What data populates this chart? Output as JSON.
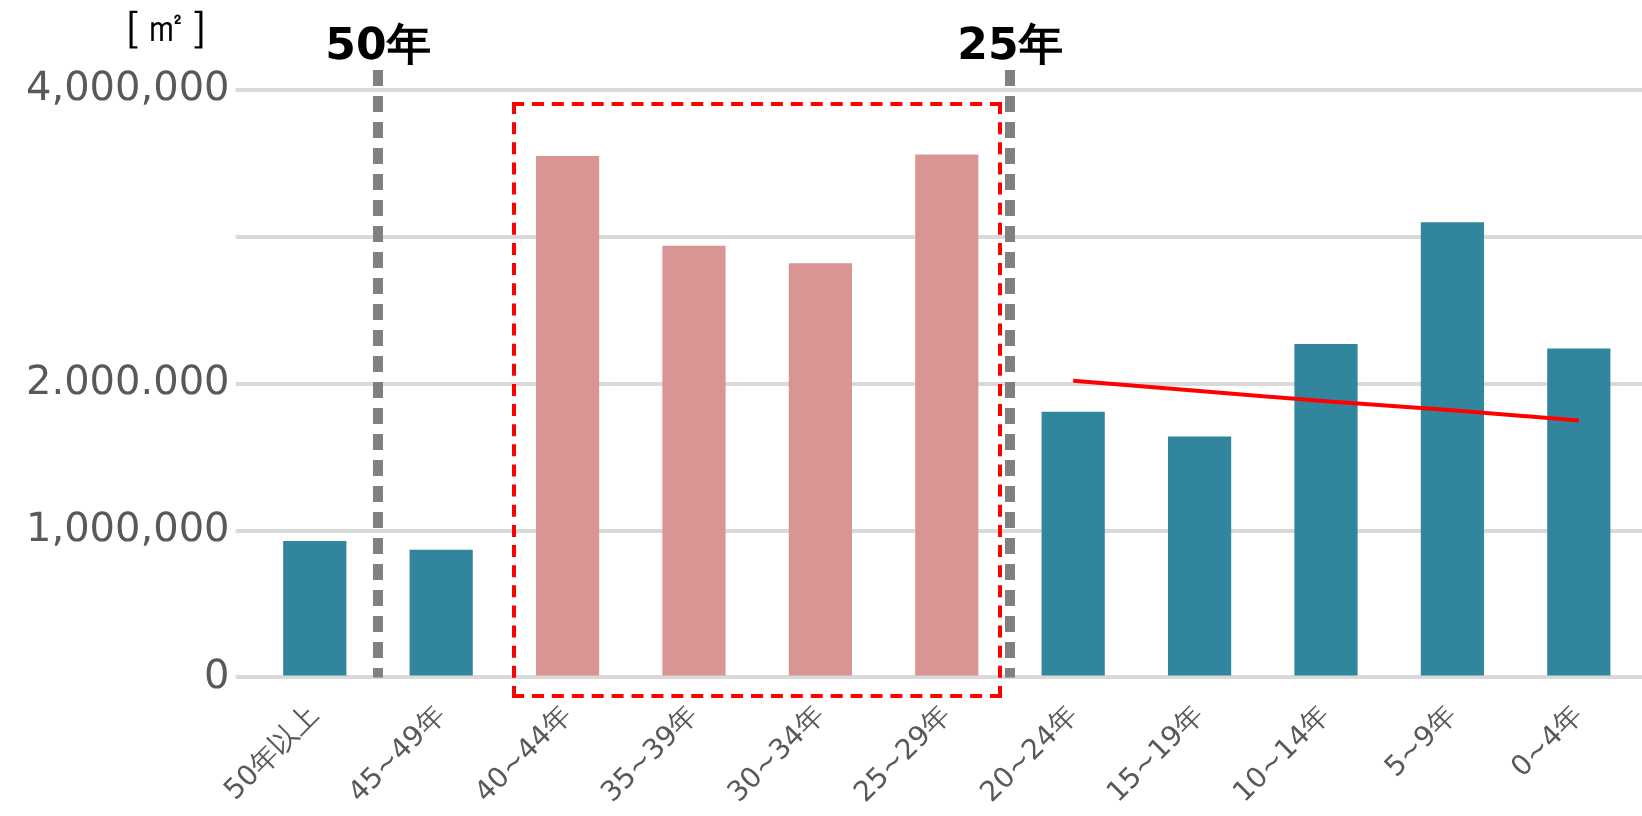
{
  "chart_data": {
    "type": "bar",
    "ylabel": "［㎡］",
    "categories": [
      "50年以上",
      "45~49年",
      "40~44年",
      "35~39年",
      "30~34年",
      "25~29年",
      "20~24年",
      "15~19年",
      "10~14年",
      "5~9年",
      "0~4年"
    ],
    "values": [
      930000,
      870000,
      3550000,
      2940000,
      2820000,
      3560000,
      1810000,
      1640000,
      2270000,
      3100000,
      2240000
    ],
    "colors": [
      "#31859c",
      "#31859c",
      "#d99594",
      "#d99594",
      "#d99594",
      "#d99594",
      "#31859c",
      "#31859c",
      "#31859c",
      "#31859c",
      "#31859c"
    ],
    "series": [
      {
        "type": "line",
        "color": "#ff0000",
        "values": [
          null,
          null,
          null,
          null,
          null,
          null,
          2020000,
          1950000,
          1880000,
          1820000,
          1750000
        ]
      }
    ],
    "ylim": [
      0,
      4000000
    ],
    "yticks": [
      0,
      {
        "value": 1000000,
        "label": "1,000,000"
      },
      {
        "value": 2000000,
        "label": "2.000.000"
      },
      {
        "value": 3000000,
        "label": null
      },
      {
        "value": 4000000,
        "label": "4,000,000"
      }
    ],
    "ref_lines": [
      {
        "axis": "x",
        "value": "45~49年",
        "label": "50年",
        "color": "#808080",
        "line_style": "dashed"
      },
      {
        "axis": "x",
        "value": "20~24年",
        "label": "25年",
        "color": "#808080",
        "line_style": "dashed"
      }
    ],
    "grid": "y",
    "legend": false
  }
}
